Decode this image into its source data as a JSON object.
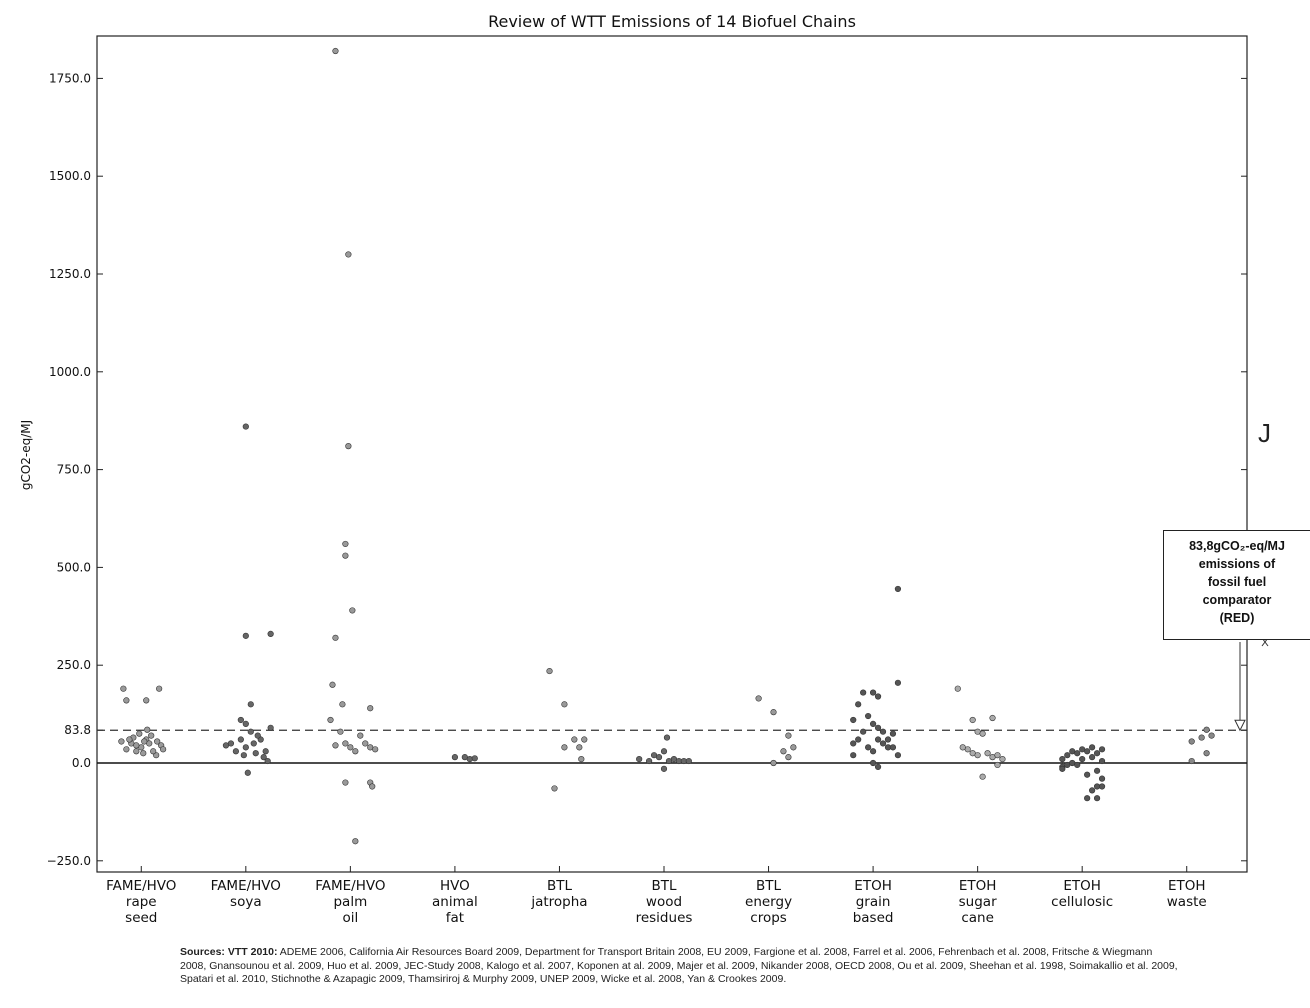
{
  "chart_data": {
    "type": "scatter",
    "title": "Review of WTT Emissions of 14 Biofuel Chains",
    "ylabel": "gCO2-eq/MJ",
    "xlabel": "",
    "ylim": [
      -280,
      1860
    ],
    "yticks": [
      {
        "value": -250,
        "label": "−250.0"
      },
      {
        "value": 0,
        "label": "0.0"
      },
      {
        "value": 83.8,
        "label": "83.8"
      },
      {
        "value": 250,
        "label": "250.0"
      },
      {
        "value": 500,
        "label": "500.0"
      },
      {
        "value": 750,
        "label": "750.0"
      },
      {
        "value": 1000,
        "label": "1000.0"
      },
      {
        "value": 1250,
        "label": "1250.0"
      },
      {
        "value": 1500,
        "label": "1500.0"
      },
      {
        "value": 1750,
        "label": "1750.0"
      }
    ],
    "reference_line": {
      "value": 83.8,
      "style": "dashed"
    },
    "zero_line": {
      "value": 0,
      "style": "solid"
    },
    "categories": [
      {
        "label": [
          "FAME/HVO",
          "rape",
          "seed"
        ],
        "color": "#9a9a9a",
        "points": [
          [
            -0.18,
            190
          ],
          [
            0.18,
            190
          ],
          [
            -0.15,
            160
          ],
          [
            0.05,
            160
          ],
          [
            -0.1,
            50
          ],
          [
            -0.05,
            30
          ],
          [
            0,
            40
          ],
          [
            0.05,
            60
          ],
          [
            0.1,
            70
          ],
          [
            0.15,
            20
          ],
          [
            0.2,
            45
          ],
          [
            -0.2,
            55
          ],
          [
            -0.15,
            35
          ],
          [
            -0.08,
            65
          ],
          [
            0.02,
            25
          ],
          [
            0.08,
            50
          ],
          [
            0.12,
            30
          ],
          [
            -0.02,
            75
          ],
          [
            0.06,
            85
          ],
          [
            -0.12,
            60
          ],
          [
            0.16,
            55
          ],
          [
            0.22,
            35
          ],
          [
            -0.05,
            45
          ],
          [
            0.03,
            55
          ]
        ]
      },
      {
        "label": [
          "FAME/HVO",
          "soya"
        ],
        "color": "#666666",
        "points": [
          [
            0,
            860
          ],
          [
            0,
            325
          ],
          [
            0.25,
            330
          ],
          [
            0.05,
            150
          ],
          [
            -0.05,
            110
          ],
          [
            0,
            100
          ],
          [
            -0.15,
            50
          ],
          [
            -0.1,
            30
          ],
          [
            -0.05,
            60
          ],
          [
            0,
            40
          ],
          [
            0.05,
            80
          ],
          [
            0.1,
            25
          ],
          [
            0.15,
            60
          ],
          [
            0.2,
            30
          ],
          [
            0.25,
            90
          ],
          [
            0.18,
            15
          ],
          [
            0.22,
            5
          ],
          [
            0.02,
            -25
          ],
          [
            -0.2,
            45
          ],
          [
            -0.02,
            20
          ],
          [
            0.08,
            50
          ],
          [
            0.12,
            70
          ]
        ]
      },
      {
        "label": [
          "FAME/HVO",
          "palm",
          "oil"
        ],
        "color": "#999999",
        "points": [
          [
            -0.15,
            1820
          ],
          [
            -0.02,
            1300
          ],
          [
            -0.02,
            810
          ],
          [
            -0.05,
            560
          ],
          [
            -0.05,
            530
          ],
          [
            0.02,
            390
          ],
          [
            -0.15,
            320
          ],
          [
            -0.18,
            200
          ],
          [
            -0.08,
            150
          ],
          [
            0.2,
            140
          ],
          [
            -0.2,
            110
          ],
          [
            -0.1,
            80
          ],
          [
            -0.05,
            50
          ],
          [
            0,
            40
          ],
          [
            0.05,
            30
          ],
          [
            0.1,
            70
          ],
          [
            0.15,
            50
          ],
          [
            0.2,
            40
          ],
          [
            0.25,
            35
          ],
          [
            -0.15,
            45
          ],
          [
            -0.05,
            -50
          ],
          [
            0.2,
            -50
          ],
          [
            0.22,
            -60
          ],
          [
            0.05,
            -200
          ]
        ]
      },
      {
        "label": [
          "HVO",
          "animal",
          "fat"
        ],
        "color": "#666666",
        "points": [
          [
            0,
            15
          ],
          [
            0.1,
            15
          ],
          [
            0.15,
            10
          ],
          [
            0.2,
            12
          ]
        ]
      },
      {
        "label": [
          "BTL",
          "jatropha"
        ],
        "color": "#999999",
        "points": [
          [
            -0.1,
            235
          ],
          [
            0.05,
            150
          ],
          [
            -0.05,
            -65
          ],
          [
            0.15,
            60
          ],
          [
            0.2,
            40
          ],
          [
            0.25,
            60
          ],
          [
            0.22,
            10
          ],
          [
            0.05,
            40
          ]
        ]
      },
      {
        "label": [
          "BTL",
          "wood",
          "residues"
        ],
        "color": "#666666",
        "points": [
          [
            -0.25,
            10
          ],
          [
            -0.15,
            5
          ],
          [
            -0.1,
            20
          ],
          [
            -0.05,
            15
          ],
          [
            0,
            30
          ],
          [
            0.03,
            65
          ],
          [
            0.05,
            5
          ],
          [
            0,
            -15
          ],
          [
            0.1,
            10
          ],
          [
            0.15,
            5
          ],
          [
            0.2,
            5
          ],
          [
            0.25,
            5
          ]
        ]
      },
      {
        "label": [
          "BTL",
          "energy",
          "crops"
        ],
        "color": "#999999",
        "points": [
          [
            -0.1,
            165
          ],
          [
            0.05,
            130
          ],
          [
            0.2,
            70
          ],
          [
            0.25,
            40
          ],
          [
            0.15,
            30
          ],
          [
            0.2,
            15
          ],
          [
            0.05,
            0
          ]
        ]
      },
      {
        "label": [
          "ETOH",
          "grain",
          "based"
        ],
        "color": "#555555",
        "points": [
          [
            0.25,
            445
          ],
          [
            0.25,
            205
          ],
          [
            -0.1,
            180
          ],
          [
            0,
            180
          ],
          [
            0.05,
            170
          ],
          [
            -0.15,
            150
          ],
          [
            -0.2,
            110
          ],
          [
            -0.05,
            120
          ],
          [
            0,
            100
          ],
          [
            0.05,
            90
          ],
          [
            -0.1,
            80
          ],
          [
            0.1,
            80
          ],
          [
            0.15,
            60
          ],
          [
            0.2,
            75
          ],
          [
            -0.2,
            50
          ],
          [
            -0.15,
            60
          ],
          [
            -0.05,
            40
          ],
          [
            0,
            30
          ],
          [
            0.05,
            60
          ],
          [
            0.1,
            50
          ],
          [
            0.15,
            40
          ],
          [
            0.2,
            40
          ],
          [
            0.25,
            20
          ],
          [
            0,
            0
          ],
          [
            0.05,
            -10
          ],
          [
            -0.2,
            20
          ]
        ]
      },
      {
        "label": [
          "ETOH",
          "sugar",
          "cane"
        ],
        "color": "#aaaaaa",
        "points": [
          [
            -0.2,
            190
          ],
          [
            -0.05,
            110
          ],
          [
            0.15,
            115
          ],
          [
            0,
            80
          ],
          [
            0.05,
            75
          ],
          [
            -0.1,
            35
          ],
          [
            -0.15,
            40
          ],
          [
            -0.05,
            25
          ],
          [
            0,
            20
          ],
          [
            0.1,
            25
          ],
          [
            0.15,
            15
          ],
          [
            0.2,
            20
          ],
          [
            0.25,
            10
          ],
          [
            0.05,
            -35
          ],
          [
            0.2,
            -5
          ]
        ]
      },
      {
        "label": [
          "ETOH",
          "cellulosic"
        ],
        "color": "#555555",
        "points": [
          [
            -0.2,
            10
          ],
          [
            -0.15,
            20
          ],
          [
            -0.1,
            30
          ],
          [
            -0.05,
            25
          ],
          [
            0,
            35
          ],
          [
            0.05,
            30
          ],
          [
            0.1,
            40
          ],
          [
            0.15,
            25
          ],
          [
            0.2,
            35
          ],
          [
            -0.2,
            -10
          ],
          [
            -0.15,
            -5
          ],
          [
            -0.1,
            0
          ],
          [
            0,
            10
          ],
          [
            0.1,
            15
          ],
          [
            0.2,
            5
          ],
          [
            0.15,
            -20
          ],
          [
            0.2,
            -40
          ],
          [
            0.15,
            -60
          ],
          [
            0.2,
            -60
          ],
          [
            0.1,
            -70
          ],
          [
            0.15,
            -90
          ],
          [
            0.05,
            -90
          ],
          [
            -0.2,
            -15
          ],
          [
            0.05,
            -30
          ],
          [
            -0.05,
            -5
          ]
        ]
      },
      {
        "label": [
          "ETOH",
          "waste"
        ],
        "color": "#888888",
        "points": [
          [
            0.2,
            85
          ],
          [
            0.15,
            65
          ],
          [
            0.2,
            25
          ],
          [
            0.05,
            55
          ],
          [
            0.25,
            70
          ],
          [
            0.05,
            5
          ]
        ]
      }
    ],
    "legend": "none",
    "grid": false
  },
  "callout": {
    "line1": "83,8gCO₂-eq/MJ",
    "line2": "emissions of",
    "line3": "fossil fuel",
    "line4": "comparator",
    "line5": "(RED)"
  },
  "stray_mark": "J",
  "sources": {
    "lead": "Sources: VTT 2010:",
    "text": "ADEME 2006, California Air Resources Board 2009, Department for Transport Britain 2008, EU 2009, Fargione et al. 2008, Farrel et al. 2006, Fehrenbach et al. 2008, Fritsche & Wiegmann 2008, Gnansounou et al. 2009, Huo et al. 2009, JEC-Study 2008, Kalogo et al. 2007, Koponen at al. 2009, Majer et al. 2009, Nikander 2008, OECD 2008, Ou et al. 2009,  Sheehan et al. 1998, Soimakallio et al. 2009, Spatari et al. 2010,   Stichnothe & Azapagic 2009, Thamsiriroj & Murphy 2009, UNEP 2009, Wicke et al. 2008, Yan & Crookes 2009."
  }
}
